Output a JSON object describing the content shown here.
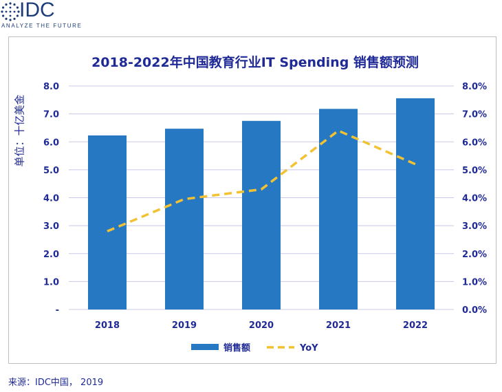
{
  "logo": {
    "text": "IDC",
    "tagline": "ANALYZE THE FUTURE"
  },
  "source": "来源：IDC中国， 2019",
  "colors": {
    "bar": "#2778c2",
    "line": "#f2c232",
    "text": "#1f2a96",
    "grid": "#c8c8e6"
  },
  "chart_data": {
    "type": "bar",
    "title": "2018-2022年中国教育行业IT Spending 销售额预测",
    "ylabel": "单位：十亿美金",
    "xlabel": "",
    "categories": [
      "2018",
      "2019",
      "2020",
      "2021",
      "2022"
    ],
    "ylim": [
      0,
      8
    ],
    "y2lim": [
      0,
      0.08
    ],
    "y_ticks": [
      "-",
      "1.0",
      "2.0",
      "3.0",
      "4.0",
      "5.0",
      "6.0",
      "7.0",
      "8.0"
    ],
    "y2_ticks": [
      "0.0%",
      "1.0%",
      "2.0%",
      "3.0%",
      "4.0%",
      "5.0%",
      "6.0%",
      "7.0%",
      "8.0%"
    ],
    "grid": true,
    "legend_position": "bottom",
    "series": [
      {
        "name": "销售额",
        "type": "bar",
        "axis": "left",
        "values": [
          6.23,
          6.47,
          6.75,
          7.18,
          7.56
        ]
      },
      {
        "name": "YoY",
        "type": "line",
        "style": "dashed",
        "axis": "right",
        "values": [
          0.028,
          0.0395,
          0.043,
          0.064,
          0.052
        ]
      }
    ]
  }
}
